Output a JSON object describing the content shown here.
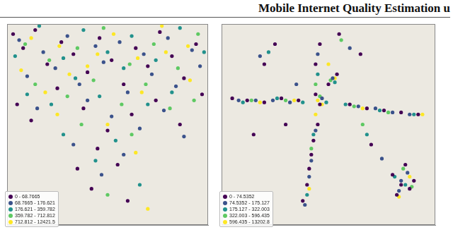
{
  "header": "Mobile Internet Quality Estimation u",
  "chart_data": [
    {
      "type": "scatter",
      "xlim": [
        0,
        100
      ],
      "ylim": [
        0,
        100
      ],
      "tick_labels": false,
      "grid": false,
      "legend": "lower left",
      "series": [
        {
          "name": "0 - 68.7665",
          "color": "#440154",
          "x": [
            3,
            8,
            14,
            20,
            27,
            33,
            40,
            46,
            52,
            58,
            64,
            70,
            76,
            82,
            88,
            94,
            97,
            5,
            12,
            25,
            38,
            50,
            62,
            74,
            86,
            45,
            55,
            35,
            42,
            60
          ],
          "values": [
            95,
            88,
            97,
            80,
            91,
            85,
            76,
            93,
            82,
            70,
            88,
            79,
            96,
            84,
            73,
            90,
            65,
            60,
            52,
            68,
            58,
            47,
            55,
            62,
            50,
            38,
            30,
            28,
            18,
            12
          ]
        },
        {
          "name": "68.7665 - 176.621",
          "color": "#3b528b",
          "x": [
            6,
            18,
            30,
            44,
            56,
            68,
            80,
            92,
            10,
            24,
            36,
            48,
            60,
            72,
            84,
            96,
            15,
            40,
            52,
            66,
            78,
            33,
            47,
            58,
            88
          ],
          "values": [
            92,
            86,
            94,
            89,
            91,
            85,
            93,
            87,
            74,
            78,
            70,
            81,
            66,
            75,
            69,
            79,
            58,
            62,
            54,
            48,
            57,
            40,
            25,
            35,
            44
          ]
        },
        {
          "name": "176.621 - 359.782",
          "color": "#21918c",
          "x": [
            4,
            16,
            28,
            38,
            50,
            62,
            74,
            86,
            98,
            10,
            22,
            34,
            46,
            58,
            70,
            82,
            28,
            54,
            44,
            66
          ],
          "values": [
            84,
            99,
            83,
            97,
            86,
            94,
            82,
            98,
            86,
            65,
            60,
            73,
            64,
            78,
            60,
            66,
            45,
            42,
            32,
            20
          ]
        },
        {
          "name": "359.782 - 712.812",
          "color": "#5ec962",
          "x": [
            9,
            21,
            35,
            48,
            61,
            73,
            85,
            95,
            14,
            30,
            43,
            57,
            69,
            81,
            93,
            37,
            62,
            50
          ],
          "values": [
            90,
            82,
            88,
            98,
            80,
            90,
            78,
            95,
            70,
            64,
            72,
            60,
            70,
            58,
            62,
            50,
            45,
            15
          ]
        },
        {
          "name": "712.812 - 12421.5",
          "color": "#fde725",
          "x": [
            12,
            26,
            40,
            53,
            65,
            77,
            90,
            7,
            19,
            31,
            45,
            67,
            79,
            91,
            25,
            50,
            64,
            70
          ],
          "values": [
            93,
            89,
            79,
            95,
            83,
            99,
            89,
            77,
            66,
            75,
            85,
            66,
            86,
            72,
            55,
            50,
            36,
            8
          ]
        }
      ]
    },
    {
      "type": "scatter",
      "xlim": [
        0,
        100
      ],
      "ylim": [
        0,
        100
      ],
      "tick_labels": false,
      "grid": false,
      "legend": "lower left",
      "series": [
        {
          "name": "0 - 74.5352",
          "color": "#440154",
          "x": [
            5,
            12,
            20,
            28,
            36,
            60,
            68,
            76,
            84,
            92,
            46,
            44,
            45,
            43,
            42,
            41,
            40,
            38,
            44,
            46,
            50,
            54,
            80,
            84,
            88,
            86,
            82,
            90,
            70,
            65,
            20,
            25,
            55,
            30,
            15
          ],
          "values": [
            63,
            62,
            61,
            63,
            62,
            60,
            58,
            57,
            56,
            55,
            90,
            80,
            50,
            42,
            35,
            28,
            20,
            12,
            65,
            60,
            70,
            75,
            25,
            20,
            18,
            30,
            15,
            22,
            40,
            85,
            80,
            90,
            95,
            50,
            45
          ]
        },
        {
          "name": "74.5352 - 175.127",
          "color": "#3b528b",
          "x": [
            8,
            16,
            24,
            32,
            64,
            72,
            80,
            88,
            45,
            44,
            42,
            41,
            39,
            47,
            52,
            84,
            87,
            83,
            60,
            18,
            35,
            75
          ],
          "values": [
            62,
            62,
            62,
            61,
            59,
            58,
            56,
            55,
            85,
            47,
            32,
            24,
            10,
            63,
            73,
            22,
            26,
            17,
            88,
            84,
            70,
            33
          ]
        },
        {
          "name": "175.127 - 322.003",
          "color": "#21918c",
          "x": [
            10,
            26,
            38,
            58,
            74,
            90,
            45,
            43,
            40,
            49,
            53,
            86,
            81,
            22,
            68
          ],
          "values": [
            61,
            63,
            61,
            60,
            57,
            55,
            75,
            45,
            15,
            61,
            71,
            20,
            24,
            86,
            45
          ]
        },
        {
          "name": "322.003 - 596.435",
          "color": "#5ec962",
          "x": [
            14,
            30,
            62,
            78,
            44,
            42,
            46,
            51,
            85,
            89,
            56,
            66
          ],
          "values": [
            62,
            62,
            59,
            56,
            70,
            38,
            64,
            72,
            28,
            19,
            92,
            50
          ]
        },
        {
          "name": "596.435 - 13202.8",
          "color": "#fde725",
          "x": [
            18,
            34,
            66,
            94,
            45,
            47,
            44,
            53,
            41,
            88,
            83,
            50
          ],
          "values": [
            61,
            62,
            58,
            55,
            62,
            60,
            55,
            73,
            18,
            24,
            14,
            80
          ]
        }
      ]
    }
  ]
}
